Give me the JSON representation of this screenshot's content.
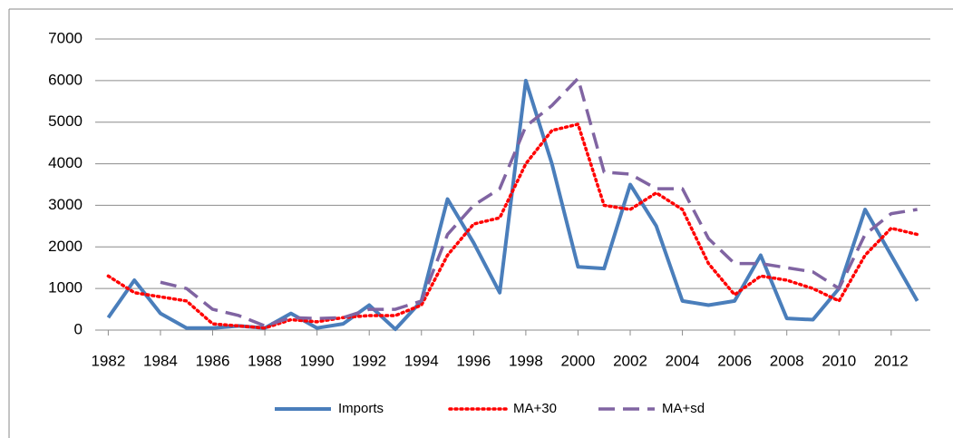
{
  "chart_data": {
    "type": "line",
    "x": [
      1982,
      1983,
      1984,
      1985,
      1986,
      1987,
      1988,
      1989,
      1990,
      1991,
      1992,
      1993,
      1994,
      1995,
      1996,
      1997,
      1998,
      1999,
      2000,
      2001,
      2002,
      2003,
      2004,
      2005,
      2006,
      2007,
      2008,
      2009,
      2010,
      2011,
      2012,
      2013
    ],
    "xlim": [
      1981.5,
      2013.5
    ],
    "xticks": [
      1982,
      1984,
      1986,
      1988,
      1990,
      1992,
      1994,
      1996,
      1998,
      2000,
      2002,
      2004,
      2006,
      2008,
      2010,
      2012
    ],
    "ylim": [
      0,
      7000
    ],
    "yticks": [
      0,
      1000,
      2000,
      3000,
      4000,
      5000,
      6000,
      7000
    ],
    "grid": true,
    "legend": "bottom",
    "series": [
      {
        "name": "Imports",
        "color": "#4a7ebb",
        "dash": "solid",
        "values": [
          300,
          1200,
          400,
          50,
          50,
          100,
          50,
          400,
          50,
          150,
          600,
          20,
          700,
          3150,
          2100,
          900,
          6000,
          4000,
          1520,
          1480,
          3500,
          2500,
          700,
          600,
          700,
          1800,
          280,
          250,
          1000,
          2900,
          1800,
          700
        ]
      },
      {
        "name": "MA+30",
        "color": "#ff0000",
        "dash": "dotted",
        "values": [
          1300,
          900,
          800,
          700,
          150,
          100,
          50,
          250,
          200,
          300,
          350,
          350,
          600,
          1800,
          2550,
          2700,
          4000,
          4800,
          4950,
          3000,
          2900,
          3300,
          2900,
          1600,
          850,
          1300,
          1200,
          1000,
          700,
          1800,
          2450,
          2300
        ]
      },
      {
        "name": "MA+sd",
        "color": "#8064a2",
        "dash": "dashed",
        "values": [
          null,
          null,
          1150,
          1000,
          500,
          350,
          100,
          300,
          280,
          300,
          500,
          500,
          700,
          2300,
          3000,
          3400,
          4900,
          5400,
          6050,
          3800,
          3750,
          3400,
          3400,
          2200,
          1600,
          1600,
          1500,
          1400,
          1000,
          2300,
          2800,
          2900
        ]
      }
    ]
  }
}
